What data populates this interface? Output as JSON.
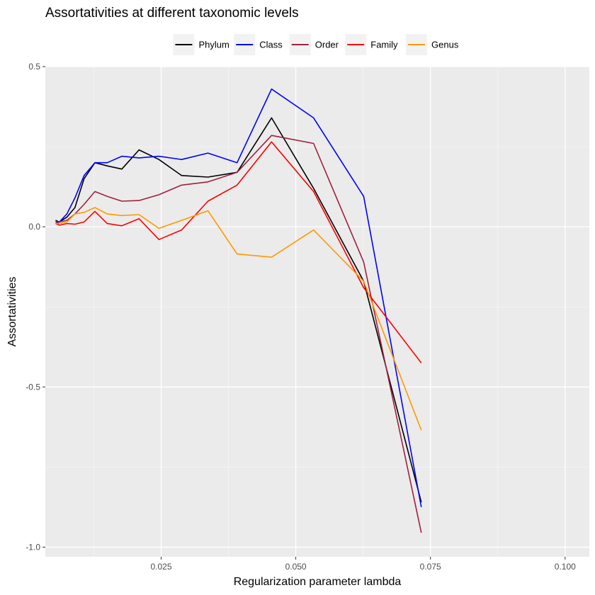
{
  "chart_data": {
    "type": "line",
    "title": "Assortativities at different taxonomic levels",
    "xlabel": "Regularization parameter lambda",
    "ylabel": "Assortativities",
    "xlim": [
      0.0035,
      0.1045
    ],
    "ylim": [
      -1.03,
      0.5
    ],
    "x_ticks": [
      0.025,
      0.05,
      0.075,
      0.1
    ],
    "x_tick_labels": [
      "0.025",
      "0.050",
      "0.075",
      "0.100"
    ],
    "y_ticks": [
      0.5,
      0.0,
      -0.5,
      -1.0
    ],
    "y_tick_labels": [
      "0.5",
      "0.0",
      "-0.5",
      "-1.0"
    ],
    "grid": true,
    "legend_position": "top",
    "x": [
      0.0054,
      0.0061,
      0.0075,
      0.009,
      0.0107,
      0.0127,
      0.015,
      0.0177,
      0.0209,
      0.0246,
      0.0288,
      0.0337,
      0.0391,
      0.0455,
      0.0533,
      0.0626,
      0.0733
    ],
    "series": [
      {
        "name": "Phylum",
        "color": "#000000",
        "values": [
          0.02,
          0.015,
          0.03,
          0.06,
          0.15,
          0.2,
          0.19,
          0.18,
          0.24,
          0.21,
          0.16,
          0.155,
          0.17,
          0.34,
          0.12,
          -0.17,
          -0.86
        ]
      },
      {
        "name": "Class",
        "color": "#0000ff",
        "values": [
          0.01,
          0.015,
          0.04,
          0.09,
          0.16,
          0.2,
          0.2,
          0.22,
          0.215,
          0.22,
          0.21,
          0.23,
          0.2,
          0.43,
          0.34,
          0.095,
          -0.875
        ]
      },
      {
        "name": "Order",
        "color": "#a0203f",
        "values": [
          0.015,
          0.015,
          0.02,
          0.04,
          0.07,
          0.11,
          0.095,
          0.08,
          0.082,
          0.1,
          0.13,
          0.14,
          0.17,
          0.285,
          0.26,
          -0.11,
          -0.955
        ]
      },
      {
        "name": "Family",
        "color": "#ff0000",
        "values": [
          0.01,
          0.005,
          0.01,
          0.008,
          0.015,
          0.048,
          0.01,
          0.003,
          0.025,
          -0.04,
          -0.01,
          0.08,
          0.13,
          0.265,
          0.11,
          -0.19,
          -0.425
        ]
      },
      {
        "name": "Genus",
        "color": "#ff9900",
        "values": [
          0.01,
          0.01,
          0.015,
          0.04,
          0.045,
          0.06,
          0.04,
          0.035,
          0.038,
          -0.005,
          0.02,
          0.05,
          -0.085,
          -0.095,
          -0.01,
          -0.17,
          -0.635
        ]
      }
    ]
  }
}
